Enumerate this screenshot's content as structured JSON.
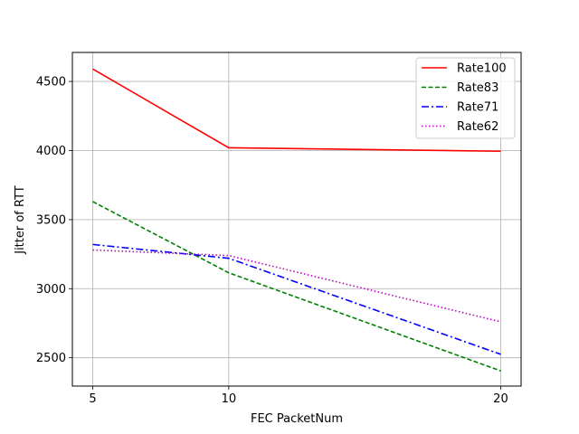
{
  "chart_data": {
    "type": "line",
    "title": "",
    "xlabel": "FEC PacketNum",
    "ylabel": "Jitter of RTT",
    "x": [
      5,
      10,
      20
    ],
    "xticks": [
      5,
      10,
      20
    ],
    "yticks": [
      2500,
      3000,
      3500,
      4000,
      4500
    ],
    "xlim": [
      4.25,
      20.75
    ],
    "ylim": [
      2295,
      4710
    ],
    "grid": true,
    "legend_position": "top-right",
    "series": [
      {
        "name": "Rate100",
        "values": [
          4590,
          4020,
          3995
        ],
        "color": "#ff0000",
        "dash": "solid"
      },
      {
        "name": "Rate83",
        "values": [
          3630,
          3115,
          2405
        ],
        "color": "#008000",
        "dash": "dashed"
      },
      {
        "name": "Rate71",
        "values": [
          3320,
          3220,
          2525
        ],
        "color": "#0000ff",
        "dash": "dashdot"
      },
      {
        "name": "Rate62",
        "values": [
          3280,
          3240,
          2760
        ],
        "color": "#bf00bf",
        "dash": "dotted"
      }
    ]
  }
}
